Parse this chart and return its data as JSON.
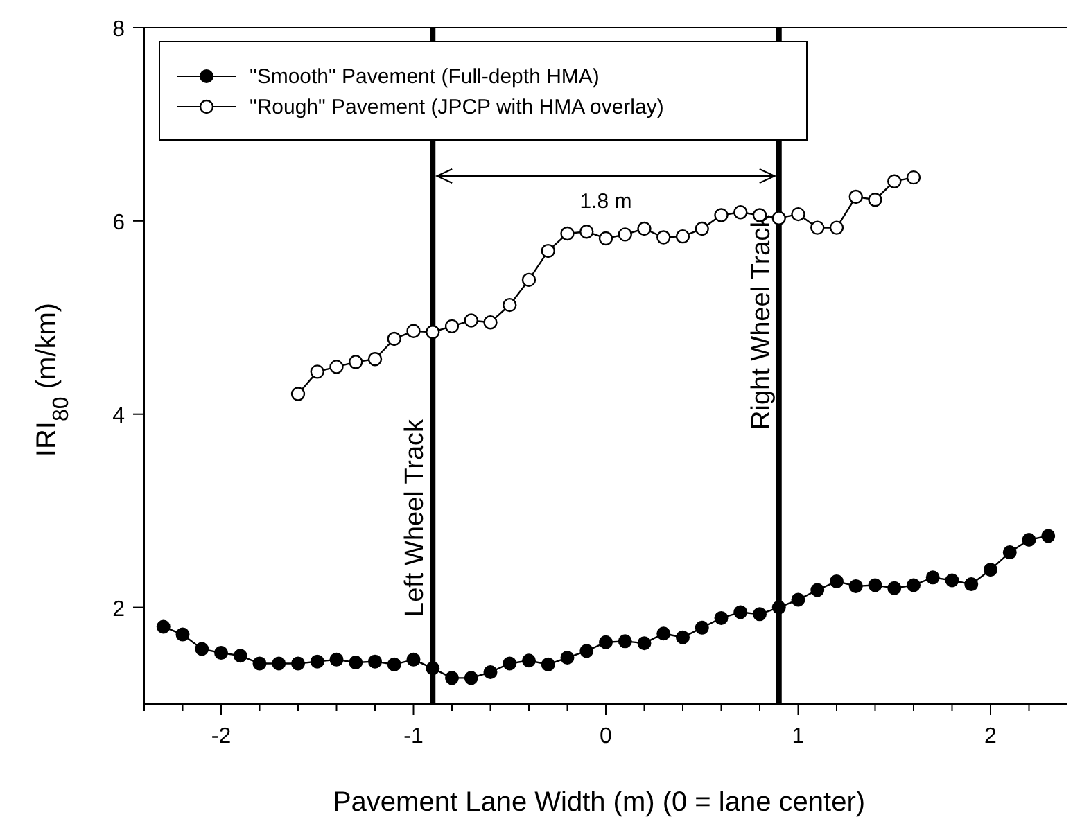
{
  "chart_data": {
    "type": "line",
    "xlabel": "Pavement Lane Width (m) (0 = lane center)",
    "ylabel": "IRI$_{80}$ (m/km)",
    "xlim": [
      -2.4,
      2.4
    ],
    "xticks": [
      {
        "value": -2.4,
        "label": null
      },
      {
        "value": -2.2,
        "label": null
      },
      -2,
      {
        "value": -1.8,
        "label": null
      },
      {
        "value": -1.6,
        "label": null
      },
      {
        "value": -1.4,
        "label": null
      },
      {
        "value": -1.2,
        "label": null
      },
      -1,
      {
        "value": -0.8,
        "label": null
      },
      {
        "value": -0.6,
        "label": null
      },
      {
        "value": -0.4,
        "label": null
      },
      {
        "value": -0.2,
        "label": null
      },
      0,
      {
        "value": 0.2,
        "label": null
      },
      {
        "value": 0.4,
        "label": null
      },
      {
        "value": 0.6,
        "label": null
      },
      {
        "value": 0.8,
        "label": null
      },
      1,
      {
        "value": 1.2,
        "label": null
      },
      {
        "value": 1.4,
        "label": null
      },
      {
        "value": 1.6,
        "label": null
      },
      {
        "value": 1.8,
        "label": null
      },
      2,
      {
        "value": 2.2,
        "label": null
      }
    ],
    "ylim": [
      1,
      8
    ],
    "yticks": [
      2,
      4,
      6,
      8
    ],
    "grid": false,
    "legend": "top left",
    "series": [
      {
        "name": "\"Smooth\" Pavement (Full-depth HMA)",
        "color": "#000000",
        "marker": "circle",
        "x": [
          -2.3,
          -2.2,
          -2.1,
          -2.0,
          -1.9,
          -1.8,
          -1.7,
          -1.6,
          -1.5,
          -1.4,
          -1.3,
          -1.2,
          -1.1,
          -1.0,
          -0.9,
          -0.8,
          -0.7,
          -0.6,
          -0.5,
          -0.4,
          -0.3,
          -0.2,
          -0.1,
          0.0,
          0.1,
          0.2,
          0.3,
          0.4,
          0.5,
          0.6,
          0.7,
          0.8,
          0.9,
          1.0,
          1.1,
          1.2,
          1.3,
          1.4,
          1.5,
          1.6,
          1.7,
          1.8,
          1.9,
          2.0,
          2.1,
          2.2,
          2.3
        ],
        "values": [
          1.8,
          1.72,
          1.57,
          1.53,
          1.5,
          1.42,
          1.42,
          1.42,
          1.44,
          1.46,
          1.43,
          1.44,
          1.41,
          1.46,
          1.37,
          1.27,
          1.27,
          1.33,
          1.42,
          1.45,
          1.41,
          1.48,
          1.55,
          1.64,
          1.65,
          1.63,
          1.73,
          1.69,
          1.79,
          1.89,
          1.95,
          1.93,
          2.0,
          2.08,
          2.18,
          2.27,
          2.22,
          2.23,
          2.2,
          2.23,
          2.31,
          2.28,
          2.24,
          2.39,
          2.57,
          2.7,
          2.74
        ]
      },
      {
        "name": "\"Rough\" Pavement (JPCP with HMA overlay)",
        "color": "#000000",
        "marker": "open circle",
        "x": [
          -1.6,
          -1.5,
          -1.4,
          -1.3,
          -1.2,
          -1.1,
          -1.0,
          -0.9,
          -0.8,
          -0.7,
          -0.6,
          -0.5,
          -0.4,
          -0.3,
          -0.2,
          -0.1,
          0.0,
          0.1,
          0.2,
          0.3,
          0.4,
          0.5,
          0.6,
          0.7,
          0.8,
          0.9,
          1.0,
          1.1,
          1.2,
          1.3,
          1.4,
          1.5,
          1.6
        ],
        "values": [
          4.21,
          4.44,
          4.49,
          4.54,
          4.57,
          4.78,
          4.86,
          4.85,
          4.91,
          4.97,
          4.95,
          5.13,
          5.39,
          5.69,
          5.87,
          5.89,
          5.82,
          5.86,
          5.92,
          5.83,
          5.84,
          5.92,
          6.06,
          6.09,
          6.06,
          6.03,
          6.07,
          5.93,
          5.93,
          6.25,
          6.22,
          6.41,
          6.45
        ]
      }
    ],
    "ref_lines": [
      {
        "axis": "x",
        "value": -0.9,
        "label": "Left Wheel Track",
        "color": "#000000"
      },
      {
        "axis": "x",
        "value": 0.9,
        "label": "Right Wheel Track",
        "color": "#000000"
      }
    ],
    "annotations": [
      "1.8 m"
    ]
  }
}
